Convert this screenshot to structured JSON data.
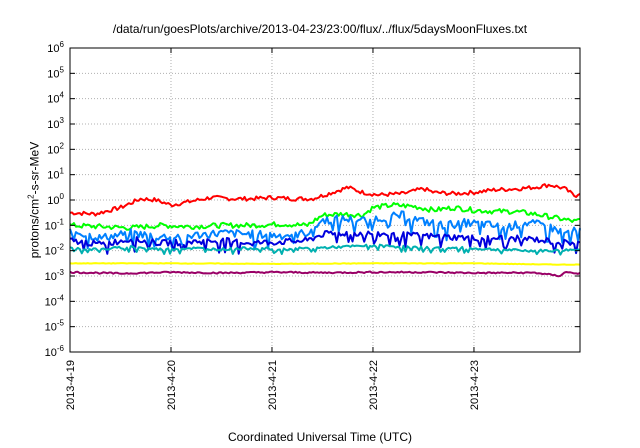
{
  "chart_data": {
    "type": "line",
    "title": "/data/run/goesPlots/archive/2013-04-23/23:00/flux/../flux/5daysMoonFluxes.txt",
    "xlabel": "Coordinated Universal Time (UTC)",
    "ylabel": {
      "base": "protons/cm",
      "sup": "2",
      "rest": "-s-sr-MeV"
    },
    "y_scale": "log",
    "ylim": [
      1e-06,
      1000000.0
    ],
    "y_ticks": [
      {
        "base": "10",
        "exp": "-6",
        "v": -6
      },
      {
        "base": "10",
        "exp": "-5",
        "v": -5
      },
      {
        "base": "10",
        "exp": "-4",
        "v": -4
      },
      {
        "base": "10",
        "exp": "-3",
        "v": -3
      },
      {
        "base": "10",
        "exp": "-2",
        "v": -2
      },
      {
        "base": "10",
        "exp": "-1",
        "v": -1
      },
      {
        "base": "10",
        "exp": "0",
        "v": 0
      },
      {
        "base": "10",
        "exp": "1",
        "v": 1
      },
      {
        "base": "10",
        "exp": "2",
        "v": 2
      },
      {
        "base": "10",
        "exp": "3",
        "v": 3
      },
      {
        "base": "10",
        "exp": "4",
        "v": 4
      },
      {
        "base": "10",
        "exp": "5",
        "v": 5
      },
      {
        "base": "10",
        "exp": "6",
        "v": 6
      }
    ],
    "xlim": [
      0,
      5.05
    ],
    "x_ticks": [
      {
        "label": "2013-4-19",
        "v": 0
      },
      {
        "label": "2013-4-20",
        "v": 1
      },
      {
        "label": "2013-4-21",
        "v": 2
      },
      {
        "label": "2013-4-22",
        "v": 3
      },
      {
        "label": "2013-4-23",
        "v": 4
      }
    ],
    "x_unit": "days after 2013-04-19 00:00 UTC",
    "grid": true,
    "series": [
      {
        "color": "#ff0000",
        "log10_flux": [
          [
            0.0,
            -0.5
          ],
          [
            0.25,
            -0.55
          ],
          [
            0.5,
            -0.3
          ],
          [
            0.7,
            0.05
          ],
          [
            0.85,
            0.0
          ],
          [
            1.0,
            -0.2
          ],
          [
            1.2,
            -0.05
          ],
          [
            1.4,
            0.1
          ],
          [
            1.6,
            0.05
          ],
          [
            1.8,
            0.05
          ],
          [
            2.0,
            0.1
          ],
          [
            2.2,
            0.05
          ],
          [
            2.4,
            0.05
          ],
          [
            2.6,
            0.3
          ],
          [
            2.75,
            0.5
          ],
          [
            2.9,
            0.3
          ],
          [
            3.05,
            0.2
          ],
          [
            3.3,
            0.25
          ],
          [
            3.5,
            0.45
          ],
          [
            3.6,
            0.3
          ],
          [
            3.8,
            0.25
          ],
          [
            4.0,
            0.3
          ],
          [
            4.2,
            0.4
          ],
          [
            4.45,
            0.45
          ],
          [
            4.6,
            0.5
          ],
          [
            4.75,
            0.6
          ],
          [
            4.9,
            0.45
          ],
          [
            5.0,
            0.15
          ],
          [
            5.05,
            0.3
          ]
        ]
      },
      {
        "color": "#00ff00",
        "log10_flux": [
          [
            0.0,
            -1.0
          ],
          [
            0.3,
            -1.05
          ],
          [
            0.6,
            -1.1
          ],
          [
            0.9,
            -1.0
          ],
          [
            1.2,
            -1.05
          ],
          [
            1.5,
            -1.0
          ],
          [
            1.8,
            -1.0
          ],
          [
            2.1,
            -0.95
          ],
          [
            2.35,
            -1.0
          ],
          [
            2.5,
            -0.6
          ],
          [
            2.7,
            -0.55
          ],
          [
            2.9,
            -0.6
          ],
          [
            3.0,
            -0.3
          ],
          [
            3.2,
            -0.2
          ],
          [
            3.4,
            -0.25
          ],
          [
            3.6,
            -0.4
          ],
          [
            3.8,
            -0.3
          ],
          [
            4.0,
            -0.4
          ],
          [
            4.2,
            -0.45
          ],
          [
            4.4,
            -0.45
          ],
          [
            4.6,
            -0.55
          ],
          [
            4.8,
            -0.7
          ],
          [
            5.0,
            -0.85
          ],
          [
            5.05,
            -0.8
          ]
        ]
      },
      {
        "color": "#0080ff",
        "log10_flux": [
          [
            0.0,
            -1.2
          ],
          [
            0.3,
            -1.5
          ],
          [
            0.6,
            -1.3
          ],
          [
            0.9,
            -1.45
          ],
          [
            1.2,
            -1.4
          ],
          [
            1.5,
            -1.3
          ],
          [
            1.8,
            -1.35
          ],
          [
            2.1,
            -1.4
          ],
          [
            2.35,
            -1.3
          ],
          [
            2.5,
            -0.8
          ],
          [
            2.7,
            -0.75
          ],
          [
            2.9,
            -0.8
          ],
          [
            3.1,
            -0.7
          ],
          [
            3.3,
            -0.6
          ],
          [
            3.5,
            -0.85
          ],
          [
            3.7,
            -1.0
          ],
          [
            3.9,
            -0.9
          ],
          [
            4.1,
            -0.95
          ],
          [
            4.3,
            -1.1
          ],
          [
            4.5,
            -0.9
          ],
          [
            4.7,
            -1.0
          ],
          [
            4.9,
            -1.3
          ],
          [
            5.05,
            -1.2
          ]
        ]
      },
      {
        "color": "#0000dd",
        "log10_flux": [
          [
            0.0,
            -1.6
          ],
          [
            0.3,
            -1.75
          ],
          [
            0.6,
            -1.55
          ],
          [
            0.9,
            -1.7
          ],
          [
            1.2,
            -1.65
          ],
          [
            1.5,
            -1.6
          ],
          [
            1.8,
            -1.7
          ],
          [
            2.1,
            -1.65
          ],
          [
            2.35,
            -1.6
          ],
          [
            2.5,
            -1.35
          ],
          [
            2.8,
            -1.3
          ],
          [
            3.1,
            -1.35
          ],
          [
            3.4,
            -1.4
          ],
          [
            3.7,
            -1.45
          ],
          [
            4.0,
            -1.5
          ],
          [
            4.3,
            -1.5
          ],
          [
            4.6,
            -1.55
          ],
          [
            4.8,
            -1.65
          ],
          [
            5.05,
            -1.7
          ]
        ]
      },
      {
        "color": "#00b0b0",
        "log10_flux": [
          [
            0.0,
            -1.9
          ],
          [
            0.3,
            -1.95
          ],
          [
            0.6,
            -1.85
          ],
          [
            0.9,
            -1.95
          ],
          [
            1.2,
            -1.9
          ],
          [
            1.5,
            -1.95
          ],
          [
            1.8,
            -1.9
          ],
          [
            2.1,
            -1.95
          ],
          [
            2.4,
            -1.9
          ],
          [
            2.7,
            -1.85
          ],
          [
            3.0,
            -1.8
          ],
          [
            3.3,
            -1.85
          ],
          [
            3.6,
            -1.9
          ],
          [
            3.9,
            -1.9
          ],
          [
            4.2,
            -1.95
          ],
          [
            4.5,
            -2.0
          ],
          [
            4.8,
            -2.0
          ],
          [
            5.05,
            -1.95
          ]
        ]
      },
      {
        "color": "#ffff00",
        "log10_flux": [
          [
            0.0,
            -2.5
          ],
          [
            1.0,
            -2.5
          ],
          [
            2.0,
            -2.52
          ],
          [
            3.0,
            -2.5
          ],
          [
            4.0,
            -2.5
          ],
          [
            4.8,
            -2.55
          ],
          [
            5.05,
            -2.55
          ]
        ]
      },
      {
        "color": "#990066",
        "log10_flux": [
          [
            0.0,
            -2.85
          ],
          [
            0.5,
            -2.9
          ],
          [
            1.0,
            -2.85
          ],
          [
            1.5,
            -2.88
          ],
          [
            2.0,
            -2.85
          ],
          [
            2.5,
            -2.87
          ],
          [
            3.0,
            -2.85
          ],
          [
            3.5,
            -2.85
          ],
          [
            4.0,
            -2.88
          ],
          [
            4.6,
            -2.87
          ],
          [
            4.85,
            -3.0
          ],
          [
            4.9,
            -2.85
          ],
          [
            5.05,
            -2.9
          ]
        ]
      }
    ]
  }
}
